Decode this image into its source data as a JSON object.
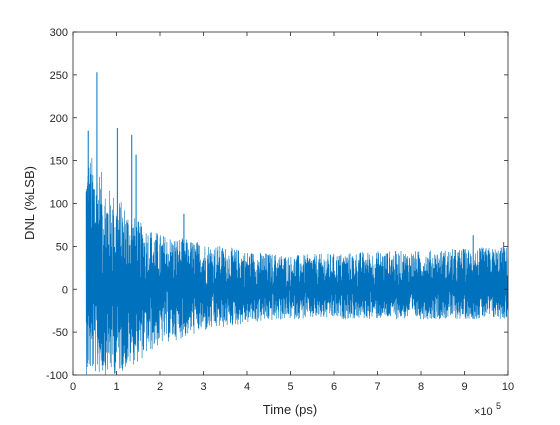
{
  "chart_data": {
    "type": "line",
    "title": "",
    "xlabel": "Time (ps)",
    "ylabel": "DNL (%LSB)",
    "x_multiplier_label": "×10",
    "x_multiplier_exponent": "5",
    "xlim": [
      0,
      10
    ],
    "ylim": [
      -100,
      300
    ],
    "xticks": [
      0,
      1,
      2,
      3,
      4,
      5,
      6,
      7,
      8,
      9,
      10
    ],
    "yticks": [
      -100,
      -50,
      0,
      50,
      100,
      150,
      200,
      250,
      300
    ],
    "grid": false,
    "series_color": "#0072BD",
    "x_start": 0.3,
    "x_end": 10,
    "envelope": {
      "x": [
        0.3,
        0.5,
        0.8,
        1.0,
        1.5,
        2.0,
        3.0,
        4.0,
        5.0,
        6.0,
        7.0,
        8.0,
        9.0,
        10.0
      ],
      "upper": [
        160,
        155,
        120,
        110,
        80,
        65,
        55,
        45,
        40,
        42,
        45,
        45,
        48,
        50
      ],
      "lower": [
        -100,
        -100,
        -100,
        -100,
        -85,
        -65,
        -50,
        -40,
        -35,
        -35,
        -35,
        -35,
        -35,
        -35
      ]
    },
    "peaks": [
      {
        "x": 0.35,
        "y": 185
      },
      {
        "x": 0.55,
        "y": 253
      },
      {
        "x": 1.02,
        "y": 188
      },
      {
        "x": 1.35,
        "y": 180
      },
      {
        "x": 1.45,
        "y": 157
      },
      {
        "x": 2.55,
        "y": 88
      },
      {
        "x": 9.2,
        "y": 63
      },
      {
        "x": 9.9,
        "y": 55
      }
    ]
  }
}
